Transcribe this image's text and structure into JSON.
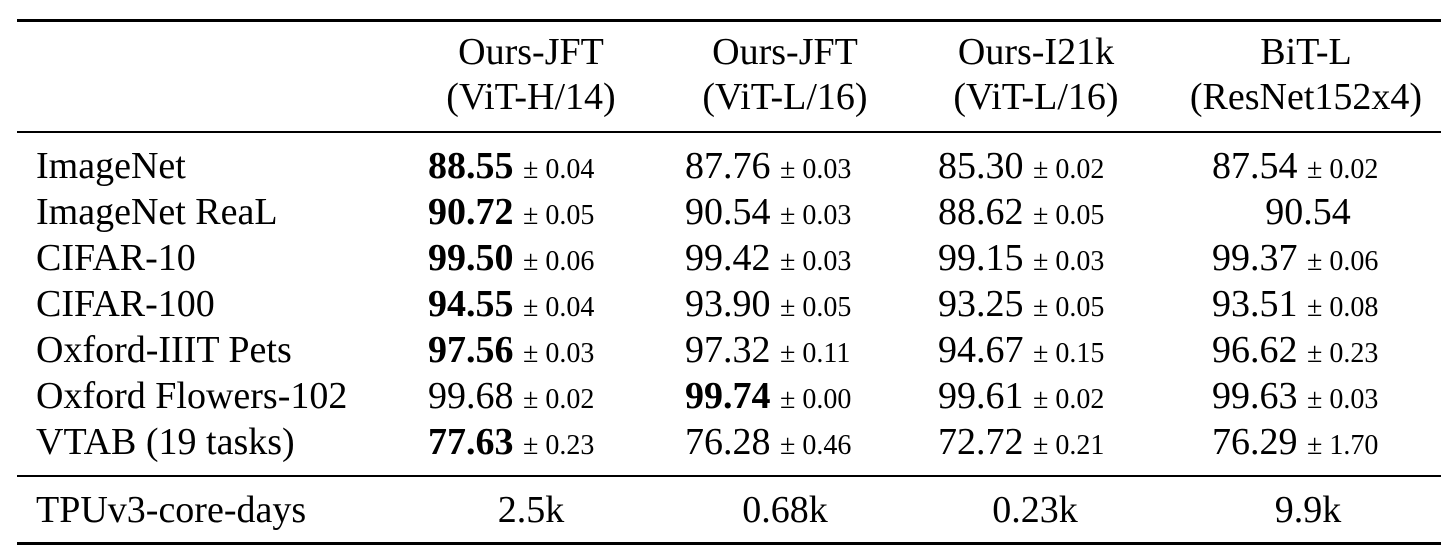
{
  "table": {
    "columns": [
      {
        "line1": "Ours-JFT",
        "line2": "(ViT-H/14)"
      },
      {
        "line1": "Ours-JFT",
        "line2": "(ViT-L/16)"
      },
      {
        "line1": "Ours-I21k",
        "line2": "(ViT-L/16)"
      },
      {
        "line1": "BiT-L",
        "line2": "(ResNet152x4)"
      }
    ],
    "rows": [
      {
        "label": "ImageNet",
        "cells": [
          {
            "value": "88.55",
            "pm": "± 0.04",
            "best": true
          },
          {
            "value": "87.76",
            "pm": "± 0.03",
            "best": false
          },
          {
            "value": "85.30",
            "pm": "± 0.02",
            "best": false
          },
          {
            "value": "87.54",
            "pm": "± 0.02",
            "best": false
          }
        ]
      },
      {
        "label": "ImageNet ReaL",
        "cells": [
          {
            "value": "90.72",
            "pm": "± 0.05",
            "best": true
          },
          {
            "value": "90.54",
            "pm": "± 0.03",
            "best": false
          },
          {
            "value": "88.62",
            "pm": "± 0.05",
            "best": false
          },
          {
            "value": "90.54",
            "pm": "",
            "best": false
          }
        ]
      },
      {
        "label": "CIFAR-10",
        "cells": [
          {
            "value": "99.50",
            "pm": "± 0.06",
            "best": true
          },
          {
            "value": "99.42",
            "pm": "± 0.03",
            "best": false
          },
          {
            "value": "99.15",
            "pm": "± 0.03",
            "best": false
          },
          {
            "value": "99.37",
            "pm": "± 0.06",
            "best": false
          }
        ]
      },
      {
        "label": "CIFAR-100",
        "cells": [
          {
            "value": "94.55",
            "pm": "± 0.04",
            "best": true
          },
          {
            "value": "93.90",
            "pm": "± 0.05",
            "best": false
          },
          {
            "value": "93.25",
            "pm": "± 0.05",
            "best": false
          },
          {
            "value": "93.51",
            "pm": "± 0.08",
            "best": false
          }
        ]
      },
      {
        "label": "Oxford-IIIT Pets",
        "cells": [
          {
            "value": "97.56",
            "pm": "± 0.03",
            "best": true
          },
          {
            "value": "97.32",
            "pm": "± 0.11",
            "best": false
          },
          {
            "value": "94.67",
            "pm": "± 0.15",
            "best": false
          },
          {
            "value": "96.62",
            "pm": "± 0.23",
            "best": false
          }
        ]
      },
      {
        "label": "Oxford Flowers-102",
        "cells": [
          {
            "value": "99.68",
            "pm": "± 0.02",
            "best": false
          },
          {
            "value": "99.74",
            "pm": "± 0.00",
            "best": true
          },
          {
            "value": "99.61",
            "pm": "± 0.02",
            "best": false
          },
          {
            "value": "99.63",
            "pm": "± 0.03",
            "best": false
          }
        ]
      },
      {
        "label": "VTAB (19 tasks)",
        "cells": [
          {
            "value": "77.63",
            "pm": "± 0.23",
            "best": true
          },
          {
            "value": "76.28",
            "pm": "± 0.46",
            "best": false
          },
          {
            "value": "72.72",
            "pm": "± 0.21",
            "best": false
          },
          {
            "value": "76.29",
            "pm": "± 1.70",
            "best": false
          }
        ]
      }
    ],
    "footer": {
      "label": "TPUv3-core-days",
      "values": [
        "2.5k",
        "0.68k",
        "0.23k",
        "9.9k"
      ]
    }
  }
}
